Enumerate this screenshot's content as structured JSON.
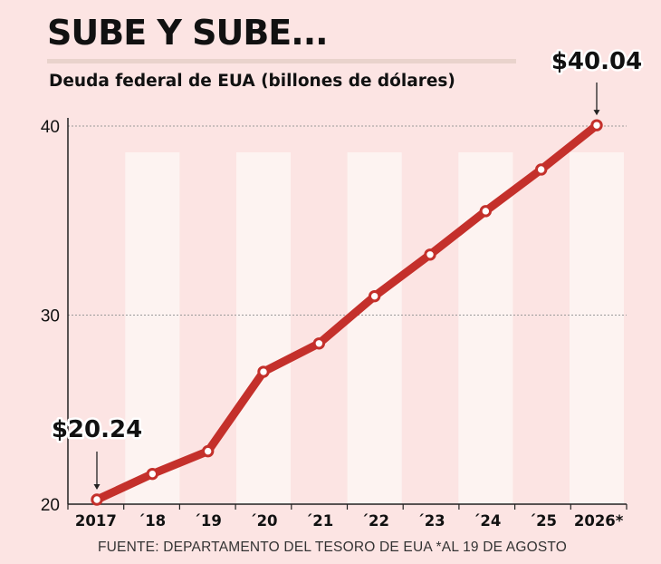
{
  "title": "SUBE Y SUBE...",
  "subtitle": "Deuda federal de EUA  (billones de dólares)",
  "source": "FUENTE: DEPARTAMENTO DEL TESORO DE EUA *AL 19 DE AGOSTO",
  "colors": {
    "background": "#fce4e3",
    "line": "#c4302b",
    "band": "#fdf4f2"
  },
  "chart_data": {
    "type": "line",
    "categories": [
      "2017",
      "´18",
      "´19",
      "´20",
      "´21",
      "´22",
      "´23",
      "´24",
      "´25",
      "2026*"
    ],
    "series": [
      {
        "values": [
          20.24,
          21.6,
          22.8,
          27.0,
          28.5,
          31.0,
          33.2,
          35.5,
          37.7,
          40.04
        ]
      }
    ],
    "yticks": [
      20,
      30,
      40
    ],
    "ylim": [
      20,
      40
    ],
    "grid": true,
    "annotations": [
      {
        "index": 0,
        "text": "$20.24"
      },
      {
        "index": 9,
        "text": "$40.04"
      }
    ]
  }
}
